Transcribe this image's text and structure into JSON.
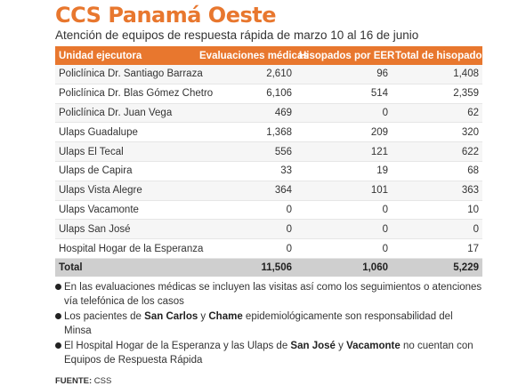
{
  "title": "CCS Panamá Oeste",
  "subtitle": "Atención de equipos de respuesta rápida de marzo 10 al 16 de junio",
  "colors": {
    "accent": "#e8772e",
    "total_row": "#cfcfcf"
  },
  "table": {
    "headers": [
      "Unidad ejecutora",
      "Evaluaciones médicas",
      "Hisopados por EER",
      "Total de hisopados"
    ],
    "rows": [
      [
        "Policlínica Dr. Santiago Barraza",
        "2,610",
        "96",
        "1,408"
      ],
      [
        "Policlínica Dr. Blas Gómez Chetro",
        "6,106",
        "514",
        "2,359"
      ],
      [
        "Policlínica Dr. Juan Vega",
        "469",
        "0",
        "62"
      ],
      [
        "Ulaps Guadalupe",
        "1,368",
        "209",
        "320"
      ],
      [
        "Ulaps El Tecal",
        "556",
        "121",
        "622"
      ],
      [
        "Ulaps de Capira",
        "33",
        "19",
        "68"
      ],
      [
        "Ulaps Vista Alegre",
        "364",
        "101",
        "363"
      ],
      [
        "Ulaps Vacamonte",
        "0",
        "0",
        "10"
      ],
      [
        "Ulaps San José",
        "0",
        "0",
        "0"
      ],
      [
        "Hospital Hogar de la Esperanza",
        "0",
        "0",
        "17"
      ]
    ],
    "total": [
      "Total",
      "11,506",
      "1,060",
      "5,229"
    ]
  },
  "notes": {
    "n1": "En las evaluaciones médicas se incluyen las visitas así como los seguimientos o atenciones vía telefónica de los casos",
    "n2_a": "Los pacientes de ",
    "n2_b": "San Carlos",
    "n2_c": " y ",
    "n2_d": "Chame",
    "n2_e": " epidemiológicamente son responsabilidad del Minsa",
    "n3_a": "El Hospital Hogar de la Esperanza y las Ulaps de ",
    "n3_b": "San José",
    "n3_c": " y ",
    "n3_d": "Vacamonte",
    "n3_e": " no cuentan con Equipos de Respuesta Rápida"
  },
  "source": {
    "label": "FUENTE:",
    "value": " CSS"
  }
}
